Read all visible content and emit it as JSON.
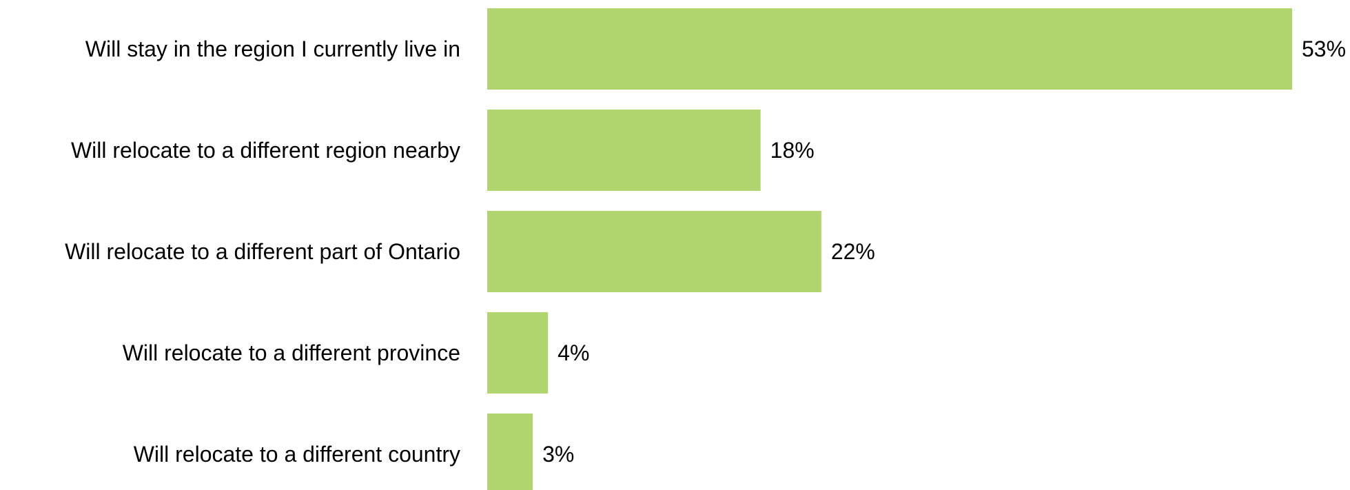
{
  "chart_data": {
    "type": "bar",
    "orientation": "horizontal",
    "categories": [
      "Will stay in the region I currently live in",
      "Will relocate to a different region nearby",
      "Will relocate to a different part of Ontario",
      "Will relocate to a different province",
      "Will relocate to a different country"
    ],
    "values": [
      53,
      18,
      22,
      4,
      3
    ],
    "value_labels": [
      "53%",
      "18%",
      "22%",
      "4%",
      "3%"
    ],
    "unit": "%",
    "xlim": [
      0,
      53
    ],
    "grid": false,
    "legend": "none",
    "bar_color": "#b0d46e",
    "text_color": "#000000"
  }
}
